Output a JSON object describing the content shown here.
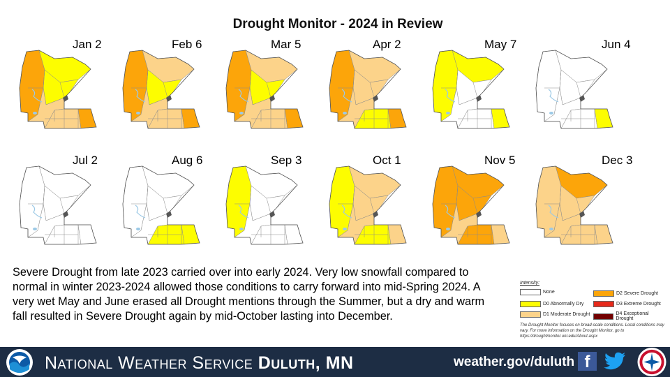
{
  "title": "Drought Monitor - 2024 in Review",
  "colors": {
    "none": "#ffffff",
    "d0": "#fdfd00",
    "d1": "#fcd38a",
    "d2": "#fca50a",
    "d3": "#e7291a",
    "d4": "#720000",
    "water": "#9cc9e6",
    "outline": "#8a8a8a",
    "footer": "#1d2d44"
  },
  "maps": [
    {
      "label": "Jan 2",
      "fills": [
        "#fca50a",
        "#fdfd00",
        "#fdfd00",
        "#fcd38a",
        "#fcd38a",
        "#fca50a"
      ]
    },
    {
      "label": "Feb 6",
      "fills": [
        "#fca50a",
        "#fcd38a",
        "#fdfd00",
        "#fcd38a",
        "#fcd38a",
        "#fca50a"
      ]
    },
    {
      "label": "Mar 5",
      "fills": [
        "#fca50a",
        "#fcd38a",
        "#fdfd00",
        "#fcd38a",
        "#fcd38a",
        "#fca50a"
      ]
    },
    {
      "label": "Apr 2",
      "fills": [
        "#fca50a",
        "#fcd38a",
        "#fcd38a",
        "#fcd38a",
        "#fdfd00",
        "#fca50a"
      ]
    },
    {
      "label": "May 7",
      "fills": [
        "#fdfd00",
        "#fdfd00",
        "#ffffff",
        "#ffffff",
        "#ffffff",
        "#fdfd00"
      ]
    },
    {
      "label": "Jun 4",
      "fills": [
        "#ffffff",
        "#ffffff",
        "#ffffff",
        "#ffffff",
        "#ffffff",
        "#fdfd00"
      ]
    },
    {
      "label": "Jul 2",
      "fills": [
        "#ffffff",
        "#ffffff",
        "#ffffff",
        "#ffffff",
        "#ffffff",
        "#ffffff"
      ]
    },
    {
      "label": "Aug 6",
      "fills": [
        "#ffffff",
        "#ffffff",
        "#ffffff",
        "#ffffff",
        "#fdfd00",
        "#fdfd00"
      ]
    },
    {
      "label": "Sep 3",
      "fills": [
        "#fdfd00",
        "#ffffff",
        "#ffffff",
        "#ffffff",
        "#ffffff",
        "#ffffff"
      ]
    },
    {
      "label": "Oct 1",
      "fills": [
        "#fdfd00",
        "#fcd38a",
        "#fcd38a",
        "#fcd38a",
        "#fdfd00",
        "#fcd38a"
      ]
    },
    {
      "label": "Nov 5",
      "fills": [
        "#fca50a",
        "#fca50a",
        "#fca50a",
        "#fcd38a",
        "#fca50a",
        "#fcd38a"
      ]
    },
    {
      "label": "Dec 3",
      "fills": [
        "#fcd38a",
        "#fca50a",
        "#fcd38a",
        "#fcd38a",
        "#fcd38a",
        "#fcd38a"
      ]
    }
  ],
  "summary": "Severe Drought from late 2023 carried over into early 2024. Very low snowfall compared to normal in winter 2023-2024 allowed those conditions to carry forward into mid-Spring 2024. A very wet May and June erased all Drought mentions through the Summer, but a dry and warm fall resulted in Severe Drought again by mid-October lasting into December.",
  "legend": {
    "title": "Intensity:",
    "items": [
      {
        "label": "None",
        "color": "#ffffff"
      },
      {
        "label": "D0 Abnormally Dry",
        "color": "#fdfd00"
      },
      {
        "label": "D1 Moderate Drought",
        "color": "#fcd38a"
      },
      {
        "label": "D2 Severe Drought",
        "color": "#fca50a"
      },
      {
        "label": "D3 Extreme Drought",
        "color": "#e7291a"
      },
      {
        "label": "D4 Exceptional Drought",
        "color": "#720000"
      }
    ],
    "note": "The Drought Monitor focuses on broad-scale conditions. Local conditions may vary. For more information on the Drought Monitor, go to https://droughtmonitor.unl.edu/About.aspx"
  },
  "footer": {
    "org_prefix": "National Weather Service",
    "office": "Duluth, MN",
    "website": "weather.gov/duluth",
    "facebook_icon": "facebook-icon",
    "twitter_icon": "twitter-icon"
  }
}
